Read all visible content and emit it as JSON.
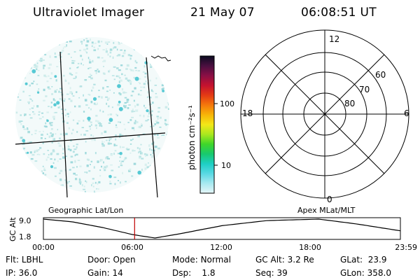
{
  "header": {
    "title": "Ultraviolet Imager",
    "date": "21 May 07",
    "time": "06:08:51 UT"
  },
  "colorbar": {
    "label": "photon cm⁻²s⁻¹",
    "ticks": [
      "100",
      "10"
    ],
    "colors": [
      "#0b0b20",
      "#4a0f40",
      "#8a0f45",
      "#c4122f",
      "#e43a14",
      "#f5780c",
      "#f7b508",
      "#f3e818",
      "#a9e81f",
      "#3fd62a",
      "#18c96e",
      "#1ecfc4",
      "#59d9e4",
      "#a8e9f0",
      "#e6f6f8"
    ]
  },
  "polar": {
    "mlt_labels": {
      "top": "12",
      "left": "18",
      "right": "6",
      "bottom": "0"
    },
    "lat_labels": [
      "60",
      "70",
      "80"
    ]
  },
  "geo_map": {
    "label_left": "Geographic Lat/Lon",
    "label_right": "Apex MLat/MLT"
  },
  "altitude_plot": {
    "ylabel": "GC Alt",
    "y_ticks": [
      "9.0",
      "1.8"
    ],
    "x_ticks": [
      "00:00",
      "06:00",
      "12:00",
      "18:00",
      "23:59"
    ],
    "current_time_marker": "06:08",
    "marker_color": "#c00000"
  },
  "status": {
    "row1": [
      {
        "key": "Flt:",
        "value": "LBHL"
      },
      {
        "key": "Door:",
        "value": "Open"
      },
      {
        "key": "Mode:",
        "value": "Normal"
      },
      {
        "key": "GC Alt:",
        "value": "3.2 Re"
      },
      {
        "key": "GLat:",
        "value": "23.9"
      }
    ],
    "row2": [
      {
        "key": "IP:",
        "value": "36.0"
      },
      {
        "key": "Gain:",
        "value": "14"
      },
      {
        "key": "Dsp:",
        "value": "1.8"
      },
      {
        "key": "Seq:",
        "value": "39"
      },
      {
        "key": "GLon:",
        "value": "358.0"
      }
    ]
  }
}
